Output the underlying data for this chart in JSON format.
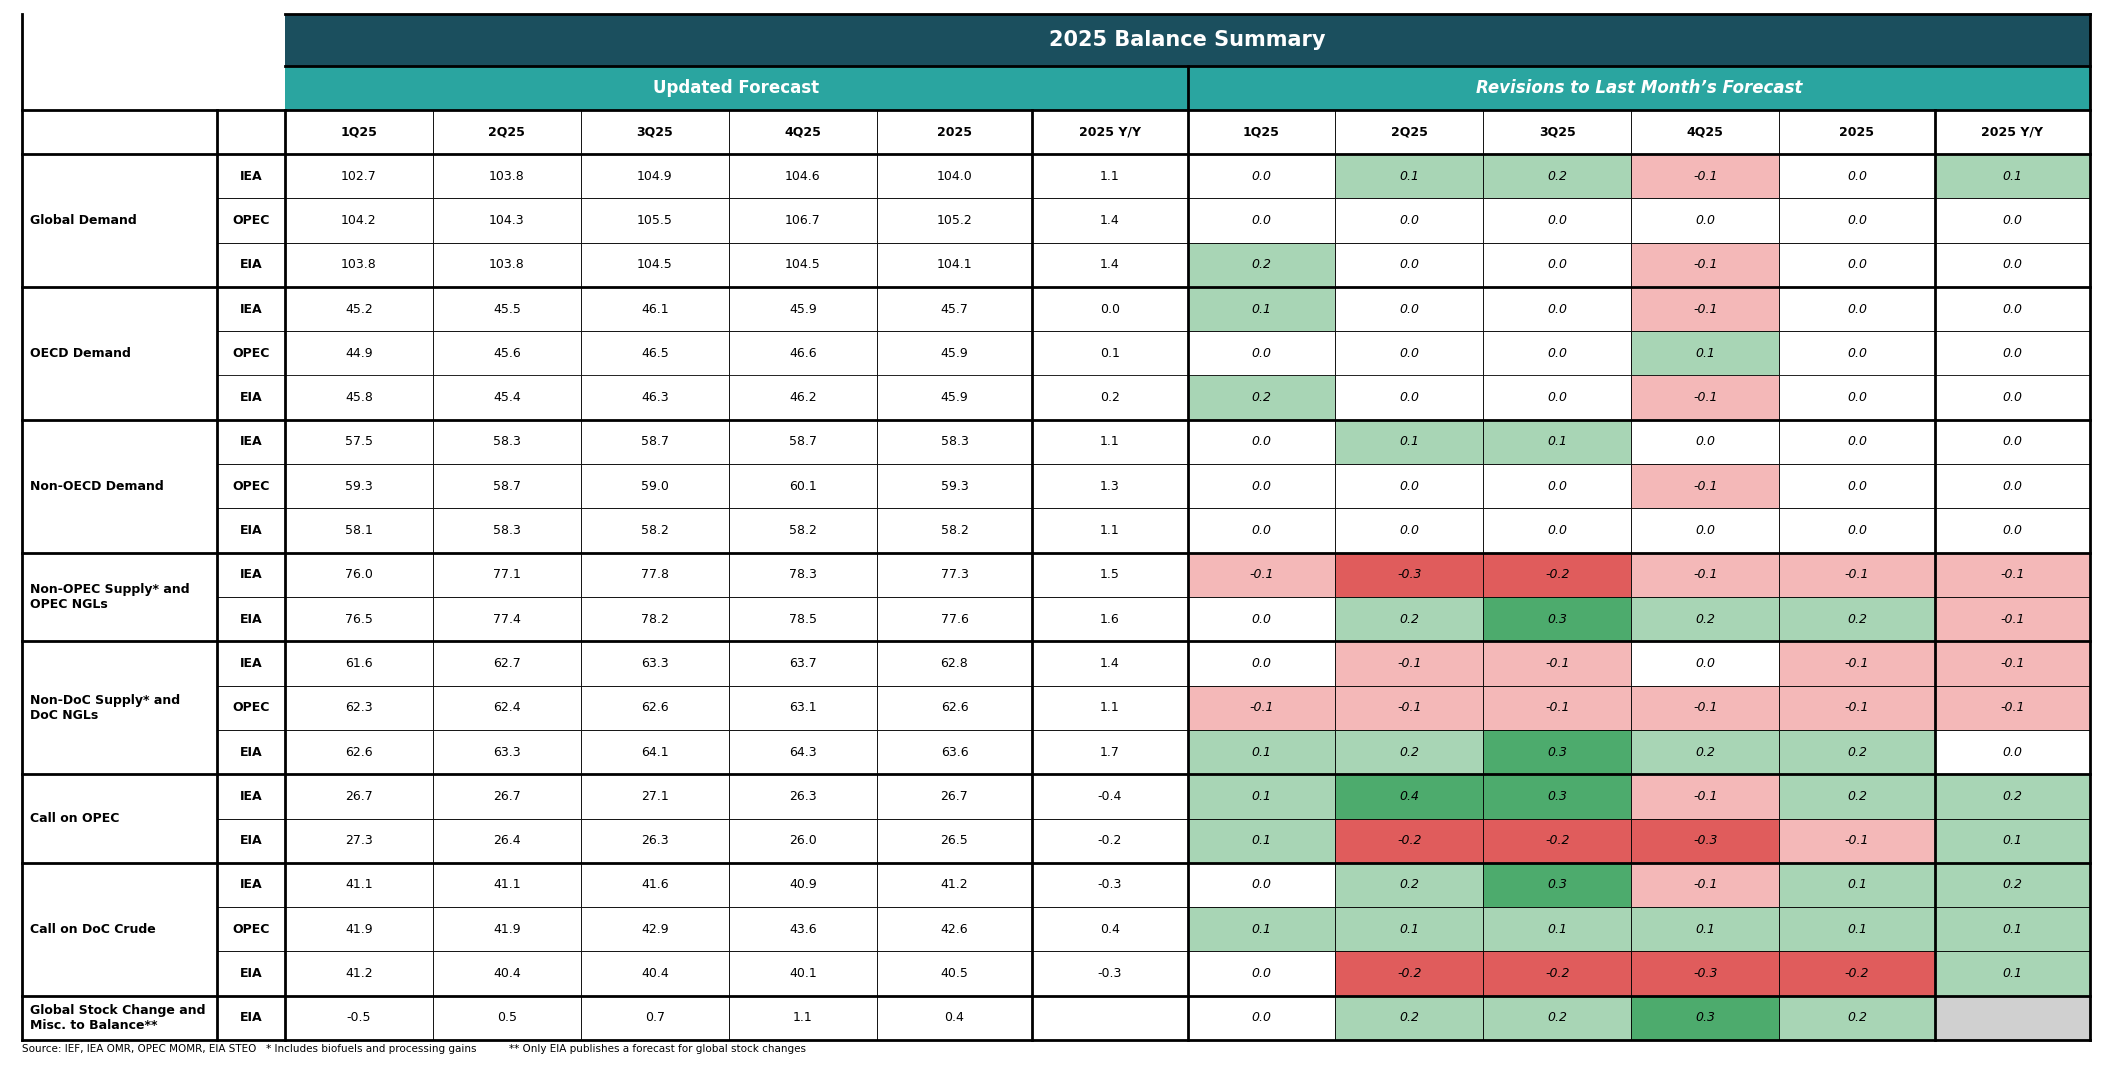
{
  "title": "2025 Balance Summary",
  "subtitle_left": "Updated Forecast",
  "subtitle_right": "Revisions to Last Month’s Forecast",
  "header_color_dark": "#1b4f5e",
  "header_color_teal": "#2aa5a0",
  "col_headers": [
    "1Q25",
    "2Q25",
    "3Q25",
    "4Q25",
    "2025",
    "2025 Y/Y",
    "1Q25",
    "2Q25",
    "3Q25",
    "4Q25",
    "2025",
    "2025 Y/Y"
  ],
  "row_groups": [
    {
      "label": "Global Demand",
      "subrows": [
        {
          "source": "IEA",
          "values": [
            102.7,
            103.8,
            104.9,
            104.6,
            104.0,
            1.1
          ],
          "revisions": [
            0.0,
            0.1,
            0.2,
            -0.1,
            0.0,
            0.1
          ]
        },
        {
          "source": "OPEC",
          "values": [
            104.2,
            104.3,
            105.5,
            106.7,
            105.2,
            1.4
          ],
          "revisions": [
            0.0,
            0.0,
            0.0,
            0.0,
            0.0,
            0.0
          ]
        },
        {
          "source": "EIA",
          "values": [
            103.8,
            103.8,
            104.5,
            104.5,
            104.1,
            1.4
          ],
          "revisions": [
            0.2,
            0.0,
            0.0,
            -0.1,
            0.0,
            0.0
          ]
        }
      ]
    },
    {
      "label": "OECD Demand",
      "subrows": [
        {
          "source": "IEA",
          "values": [
            45.2,
            45.5,
            46.1,
            45.9,
            45.7,
            0.0
          ],
          "revisions": [
            0.1,
            0.0,
            0.0,
            -0.1,
            0.0,
            0.0
          ]
        },
        {
          "source": "OPEC",
          "values": [
            44.9,
            45.6,
            46.5,
            46.6,
            45.9,
            0.1
          ],
          "revisions": [
            0.0,
            0.0,
            0.0,
            0.1,
            0.0,
            0.0
          ]
        },
        {
          "source": "EIA",
          "values": [
            45.8,
            45.4,
            46.3,
            46.2,
            45.9,
            0.2
          ],
          "revisions": [
            0.2,
            0.0,
            0.0,
            -0.1,
            0.0,
            0.0
          ]
        }
      ]
    },
    {
      "label": "Non-OECD Demand",
      "subrows": [
        {
          "source": "IEA",
          "values": [
            57.5,
            58.3,
            58.7,
            58.7,
            58.3,
            1.1
          ],
          "revisions": [
            0.0,
            0.1,
            0.1,
            0.0,
            0.0,
            0.0
          ]
        },
        {
          "source": "OPEC",
          "values": [
            59.3,
            58.7,
            59.0,
            60.1,
            59.3,
            1.3
          ],
          "revisions": [
            0.0,
            0.0,
            0.0,
            -0.1,
            0.0,
            0.0
          ]
        },
        {
          "source": "EIA",
          "values": [
            58.1,
            58.3,
            58.2,
            58.2,
            58.2,
            1.1
          ],
          "revisions": [
            0.0,
            0.0,
            0.0,
            0.0,
            0.0,
            0.0
          ]
        }
      ]
    },
    {
      "label": "Non-OPEC Supply* and\nOPEC NGLs",
      "subrows": [
        {
          "source": "IEA",
          "values": [
            76.0,
            77.1,
            77.8,
            78.3,
            77.3,
            1.5
          ],
          "revisions": [
            -0.1,
            -0.3,
            -0.2,
            -0.1,
            -0.1,
            -0.1
          ]
        },
        {
          "source": "EIA",
          "values": [
            76.5,
            77.4,
            78.2,
            78.5,
            77.6,
            1.6
          ],
          "revisions": [
            0.0,
            0.2,
            0.3,
            0.2,
            0.2,
            -0.1
          ]
        }
      ]
    },
    {
      "label": "Non-DoC Supply* and\nDoC NGLs",
      "subrows": [
        {
          "source": "IEA",
          "values": [
            61.6,
            62.7,
            63.3,
            63.7,
            62.8,
            1.4
          ],
          "revisions": [
            0.0,
            -0.1,
            -0.1,
            0.0,
            -0.1,
            -0.1
          ]
        },
        {
          "source": "OPEC",
          "values": [
            62.3,
            62.4,
            62.6,
            63.1,
            62.6,
            1.1
          ],
          "revisions": [
            -0.1,
            -0.1,
            -0.1,
            -0.1,
            -0.1,
            -0.1
          ]
        },
        {
          "source": "EIA",
          "values": [
            62.6,
            63.3,
            64.1,
            64.3,
            63.6,
            1.7
          ],
          "revisions": [
            0.1,
            0.2,
            0.3,
            0.2,
            0.2,
            0.0
          ]
        }
      ]
    },
    {
      "label": "Call on OPEC",
      "subrows": [
        {
          "source": "IEA",
          "values": [
            26.7,
            26.7,
            27.1,
            26.3,
            26.7,
            -0.4
          ],
          "revisions": [
            0.1,
            0.4,
            0.3,
            -0.1,
            0.2,
            0.2
          ]
        },
        {
          "source": "EIA",
          "values": [
            27.3,
            26.4,
            26.3,
            26.0,
            26.5,
            -0.2
          ],
          "revisions": [
            0.1,
            -0.2,
            -0.2,
            -0.3,
            -0.1,
            0.1
          ]
        }
      ]
    },
    {
      "label": "Call on DoC Crude",
      "subrows": [
        {
          "source": "IEA",
          "values": [
            41.1,
            41.1,
            41.6,
            40.9,
            41.2,
            -0.3
          ],
          "revisions": [
            0.0,
            0.2,
            0.3,
            -0.1,
            0.1,
            0.2
          ]
        },
        {
          "source": "OPEC",
          "values": [
            41.9,
            41.9,
            42.9,
            43.6,
            42.6,
            0.4
          ],
          "revisions": [
            0.1,
            0.1,
            0.1,
            0.1,
            0.1,
            0.1
          ]
        },
        {
          "source": "EIA",
          "values": [
            41.2,
            40.4,
            40.4,
            40.1,
            40.5,
            -0.3
          ],
          "revisions": [
            0.0,
            -0.2,
            -0.2,
            -0.3,
            -0.2,
            0.1
          ]
        }
      ]
    },
    {
      "label": "Global Stock Change and\nMisc. to Balance**",
      "subrows": [
        {
          "source": "EIA",
          "values": [
            -0.5,
            0.5,
            0.7,
            1.1,
            0.4,
            null
          ],
          "revisions": [
            0.0,
            0.2,
            0.2,
            0.3,
            0.2,
            null
          ]
        }
      ]
    }
  ],
  "footer": "Source: IEF, IEA OMR, OPEC MOMR, EIA STEO   * Includes biofuels and processing gains          ** Only EIA publishes a forecast for global stock changes",
  "color_pos_strong": "#4dab6d",
  "color_pos_weak": "#a8d5b5",
  "color_neg_strong": "#e05c5c",
  "color_neg_weak": "#f4b8b8",
  "color_zero": "#ffffff",
  "color_grey_bg": "#d0d0d0"
}
